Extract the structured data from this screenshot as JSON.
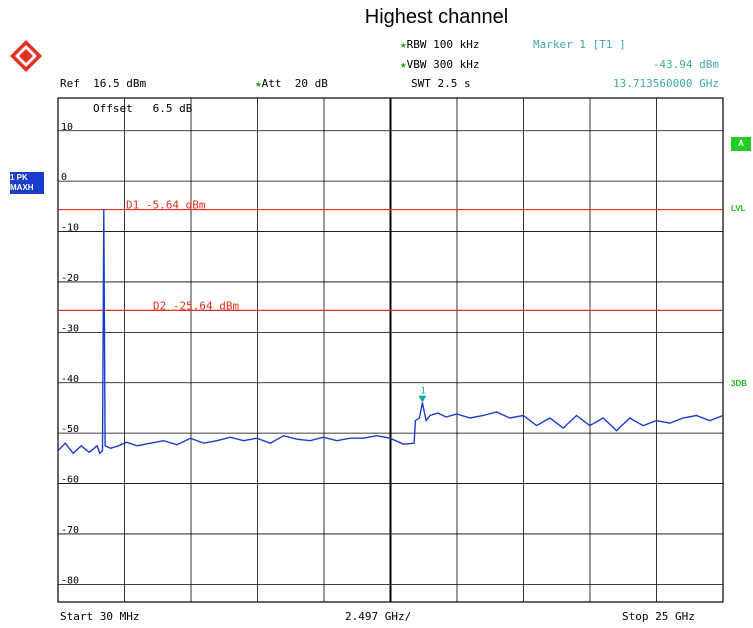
{
  "chart_data": {
    "type": "line",
    "title": "Highest channel",
    "header": {
      "rbw_label": "RBW",
      "rbw_value": "100 kHz",
      "vbw_label": "VBW",
      "vbw_value": "300 kHz",
      "swt_label": "SWT",
      "swt_value": "2.5 s",
      "ref_label": "Ref",
      "ref_value": "16.5 dBm",
      "att_label": "Att",
      "att_value": "20 dB",
      "marker_label": "Marker 1 [T1 ]",
      "marker_level": "-43.94 dBm",
      "marker_freq": "13.713560000 GHz",
      "offset_label": "Offset",
      "offset_value": "6.5 dB"
    },
    "side_labels": {
      "trace_line1": "1 PK",
      "trace_line2": "MAXH",
      "a_badge": "A",
      "lvl": "LVL",
      "db3": "3DB"
    },
    "footer": {
      "start": "Start 30 MHz",
      "div": "2.497 GHz/",
      "stop": "Stop 25 GHz"
    },
    "y_ticks": [
      "10",
      "0",
      "-10",
      "-20",
      "-30",
      "-40",
      "-50",
      "-60",
      "-70",
      "-80"
    ],
    "y_tick_values": [
      10,
      0,
      -10,
      -20,
      -30,
      -40,
      -50,
      -60,
      -70,
      -80
    ],
    "xlim": [
      0.03,
      25.0
    ],
    "ylim": [
      -83.5,
      16.5
    ],
    "display_lines": [
      {
        "label": "D1 -5.64 dBm",
        "value": -5.64,
        "color": "#e0301e"
      },
      {
        "label": "D2 -25.64 dBm",
        "value": -25.64,
        "color": "#e0301e"
      }
    ],
    "marker": {
      "label": "1",
      "x": 13.71356,
      "y": -43.94,
      "color": "#1aa6a6"
    },
    "series": [
      {
        "color": "#1a3ccc",
        "x": [
          0.03,
          0.3,
          0.6,
          0.9,
          1.2,
          1.5,
          1.6,
          1.7,
          1.75,
          1.8,
          2.0,
          2.3,
          2.6,
          3.0,
          3.5,
          4.0,
          4.5,
          5.0,
          5.5,
          6.0,
          6.5,
          7.0,
          7.5,
          8.0,
          8.5,
          9.0,
          9.5,
          10.0,
          10.5,
          11.0,
          11.5,
          12.0,
          12.5,
          13.0,
          13.4,
          13.45,
          13.6,
          13.71356,
          13.85,
          14.0,
          14.3,
          14.6,
          15.0,
          15.5,
          16.0,
          16.5,
          17.0,
          17.5,
          18.0,
          18.5,
          19.0,
          19.5,
          20.0,
          20.5,
          21.0,
          21.5,
          22.0,
          22.5,
          23.0,
          23.5,
          24.0,
          24.5,
          25.0
        ],
        "y": [
          -53.5,
          -52.0,
          -54.0,
          -52.5,
          -53.8,
          -52.5,
          -54.0,
          -53.5,
          -5.64,
          -52.5,
          -53.0,
          -52.5,
          -51.8,
          -52.5,
          -52.0,
          -51.5,
          -52.3,
          -51.0,
          -52.0,
          -51.5,
          -50.8,
          -51.5,
          -51.0,
          -52.0,
          -50.5,
          -51.2,
          -51.5,
          -50.8,
          -51.5,
          -51.0,
          -51.0,
          -50.5,
          -51.0,
          -52.2,
          -52.0,
          -47.5,
          -47.0,
          -43.94,
          -47.5,
          -46.5,
          -46.0,
          -46.8,
          -46.2,
          -47.0,
          -46.5,
          -45.8,
          -47.0,
          -46.5,
          -48.5,
          -47.0,
          -49.0,
          -46.5,
          -48.5,
          -47.0,
          -49.5,
          -47.0,
          -48.5,
          -47.5,
          -48.0,
          -47.0,
          -46.5,
          -47.5,
          -46.5
        ]
      }
    ]
  }
}
